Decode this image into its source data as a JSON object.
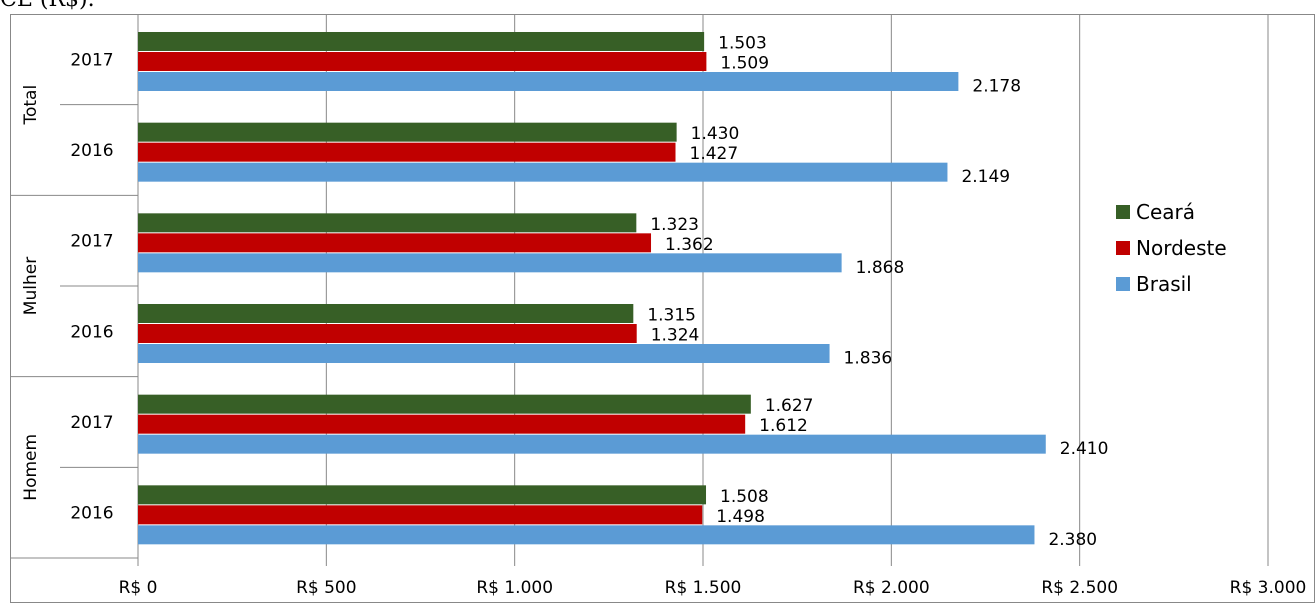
{
  "chart_data": {
    "type": "hbar",
    "title": "CE (R$).",
    "groups": [
      "Total",
      "Mulher",
      "Homem"
    ],
    "categories": [
      "2017",
      "2016",
      "2017",
      "2016",
      "2017",
      "2016"
    ],
    "series": [
      {
        "name": "Ceará",
        "color": "#375f26",
        "values": [
          1503,
          1430,
          1323,
          1315,
          1627,
          1508
        ],
        "value_labels": [
          "1.503",
          "1.430",
          "1.323",
          "1.315",
          "1.627",
          "1.508"
        ]
      },
      {
        "name": "Nordeste",
        "color": "#c00000",
        "values": [
          1509,
          1427,
          1362,
          1324,
          1612,
          1498
        ],
        "value_labels": [
          "1.509",
          "1.427",
          "1.362",
          "1.324",
          "1.612",
          "1.498"
        ]
      },
      {
        "name": "Brasil",
        "color": "#5b9bd5",
        "values": [
          2178,
          2149,
          1868,
          1836,
          2410,
          2380
        ],
        "value_labels": [
          "2.178",
          "2.149",
          "1.868",
          "1.836",
          "2.410",
          "2.380"
        ]
      }
    ],
    "xlim": [
      0,
      3000
    ],
    "xticks": [
      {
        "value": 0,
        "label": "R$ 0"
      },
      {
        "value": 500,
        "label": "R$ 500"
      },
      {
        "value": 1000,
        "label": "R$ 1.000"
      },
      {
        "value": 1500,
        "label": "R$ 1.500"
      },
      {
        "value": 2000,
        "label": "R$ 2.000"
      },
      {
        "value": 2500,
        "label": "R$ 2.500"
      },
      {
        "value": 3000,
        "label": "R$ 3.000"
      }
    ],
    "grid": true,
    "legend": "right"
  }
}
